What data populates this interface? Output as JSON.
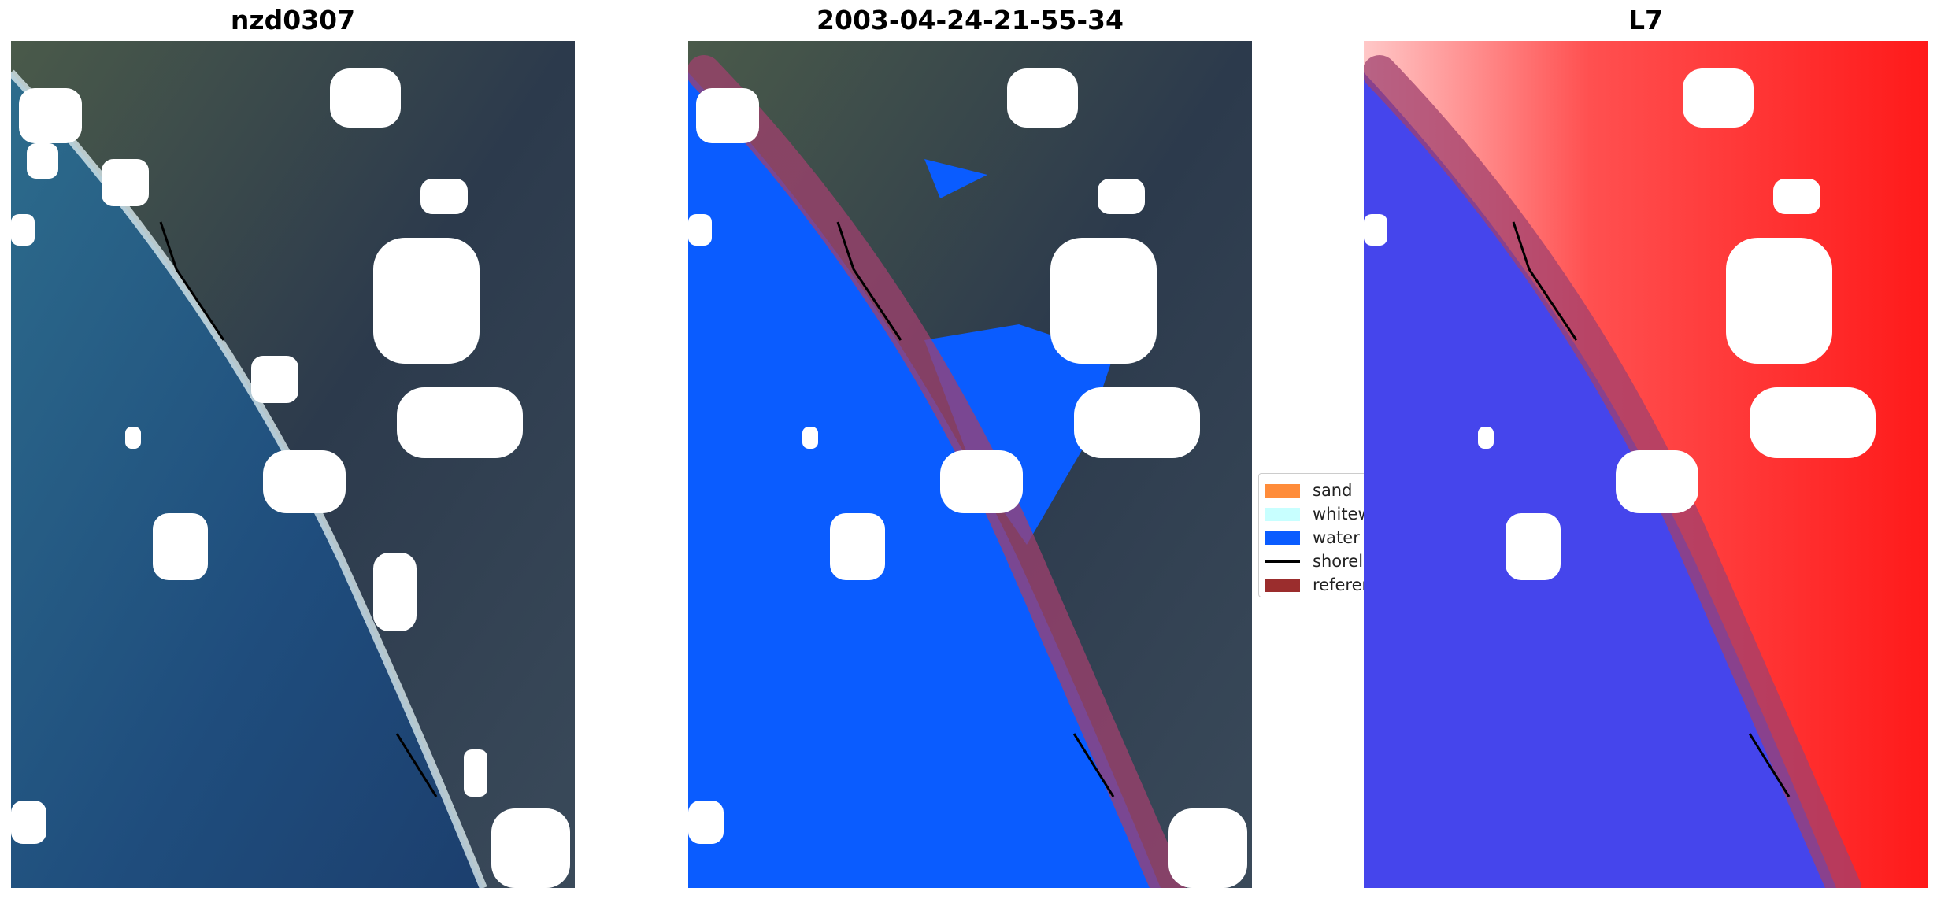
{
  "panels": [
    {
      "title": "nzd0307",
      "kind": "rgb"
    },
    {
      "title": "2003-04-24-21-55-34",
      "kind": "classified"
    },
    {
      "title": "L7",
      "kind": "index"
    }
  ],
  "legend": {
    "items": [
      {
        "label": "sand",
        "color": "#ff8c3a",
        "type": "patch"
      },
      {
        "label": "whitew",
        "color": "#c8ffff",
        "type": "patch"
      },
      {
        "label": "water",
        "color": "#0a5cff",
        "type": "patch"
      },
      {
        "label": "shorel",
        "color": "#000000",
        "type": "line"
      },
      {
        "label": "referen",
        "color": "#9b2d2d",
        "type": "patch"
      }
    ]
  },
  "colors": {
    "ocean": "#1f4a7a",
    "land": "#2c3a4a",
    "water_class": "#0a5cff",
    "reference_band": "#a0406e",
    "index_water": "#4444ee",
    "index_land": "#ff2a2a",
    "cloud": "#ffffff",
    "shoreline": "#000000"
  }
}
